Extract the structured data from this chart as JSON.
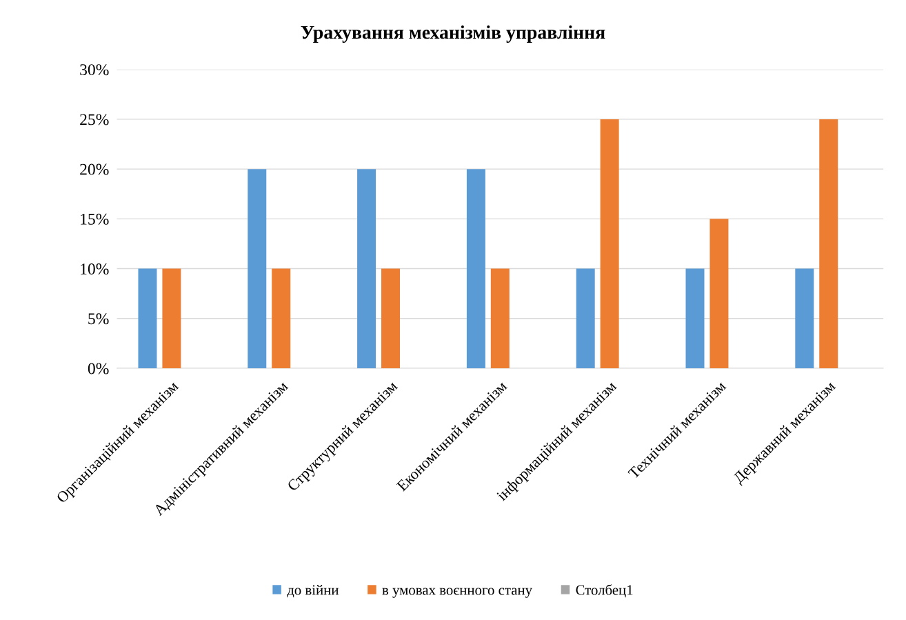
{
  "chart_data": {
    "type": "bar",
    "title": "Урахування механізмів управління",
    "categories": [
      "Організаційний механізм",
      "Адміністративний механізм",
      "Структурний механізм",
      "Економічний механізм",
      "інформаційний механізм",
      "Технічний механізм",
      "Державний механізм"
    ],
    "series": [
      {
        "name": "до війни",
        "color": "#5b9bd5",
        "values": [
          10,
          20,
          20,
          20,
          10,
          10,
          10
        ]
      },
      {
        "name": "в умовах воєнного стану",
        "color": "#ed7d31",
        "values": [
          10,
          10,
          10,
          10,
          25,
          15,
          25
        ]
      },
      {
        "name": "Столбец1",
        "color": "#a5a5a5",
        "values": [
          null,
          null,
          null,
          null,
          null,
          null,
          null
        ]
      }
    ],
    "ylim": [
      0,
      30
    ],
    "yticks": [
      {
        "value": 0,
        "label": "0%"
      },
      {
        "value": 5,
        "label": "5%"
      },
      {
        "value": 10,
        "label": "10%"
      },
      {
        "value": 15,
        "label": "15%"
      },
      {
        "value": 20,
        "label": "20%"
      },
      {
        "value": 25,
        "label": "25%"
      },
      {
        "value": 30,
        "label": "30%"
      }
    ],
    "grid": "y",
    "legend": "bottom"
  }
}
